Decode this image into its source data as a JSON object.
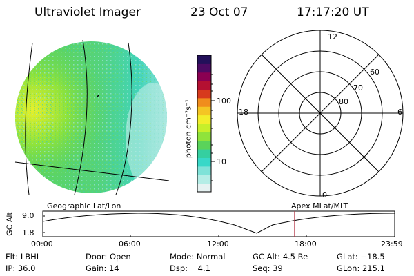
{
  "header": {
    "instrument": "Ultraviolet Imager",
    "date": "23 Oct 07",
    "time": "17:17:20 UT"
  },
  "colorbar": {
    "unit_label": "photon cm⁻²s⁻¹",
    "ticks": [
      "100",
      "10"
    ],
    "colors": [
      "#e6f2f2",
      "#b5ede6",
      "#7fe2d8",
      "#38d8c8",
      "#35cfa0",
      "#5ad35a",
      "#8fe33b",
      "#c7ef2a",
      "#f2ee2b",
      "#f4c524",
      "#f08d1d",
      "#d73a1d",
      "#b41032",
      "#8a0052",
      "#4d0a63",
      "#23105a"
    ]
  },
  "polar": {
    "mlt_labels": {
      "top": "12",
      "left": "18",
      "right": "6",
      "bottom": "0"
    },
    "lat_labels": [
      "60",
      "70",
      "80"
    ]
  },
  "timeline": {
    "left_label": "Geographic Lat/Lon",
    "right_label": "Apex MLat/MLT",
    "ylabel": "GC Alt",
    "yticks": [
      "9.0",
      "1.8"
    ],
    "xticks": [
      "00:00",
      "06:00",
      "12:00",
      "18:00",
      "23:59"
    ]
  },
  "status": {
    "flt": "Flt: LBHL",
    "ip": "IP: 36.0",
    "door": "Door: Open",
    "gain": "Gain: 14",
    "mode": "Mode: Normal",
    "dsp": "Dsp:    4.1",
    "gc_alt": "GC Alt: 4.5 Re",
    "seq": "Seq: 39",
    "glat": "GLat: −18.5",
    "glon": "GLon: 215.1"
  }
}
